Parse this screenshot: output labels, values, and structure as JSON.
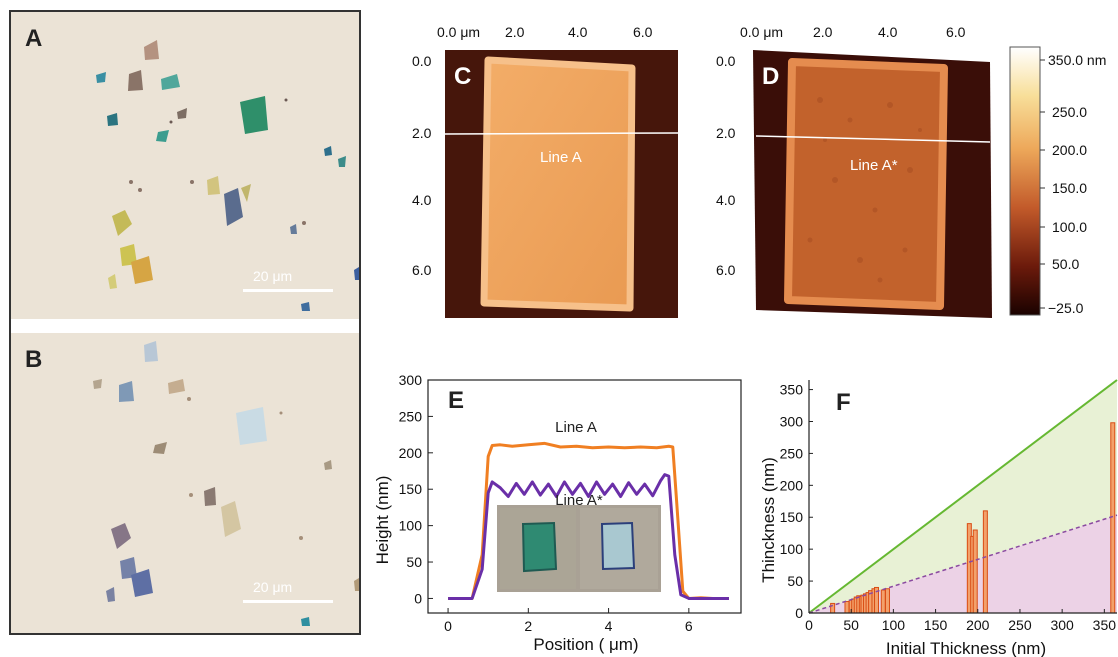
{
  "panels": {
    "a": {
      "letter": "A",
      "scalebar": "20 μm"
    },
    "b": {
      "letter": "B",
      "scalebar": "20 μm"
    },
    "c": {
      "letter": "C",
      "line_label": "Line A"
    },
    "d": {
      "letter": "D",
      "line_label": "Line A*"
    },
    "e": {
      "letter": "E"
    },
    "f": {
      "letter": "F"
    }
  },
  "afm": {
    "x_ticks": [
      "0.0 μm",
      "2.0",
      "4.0",
      "6.0"
    ],
    "y_ticks": [
      "0.0",
      "2.0",
      "4.0",
      "6.0"
    ]
  },
  "colorbar": {
    "labels": [
      "350.0 nm",
      "250.0",
      "200.0",
      "150.0",
      "100.0",
      "50.0",
      "−25.0"
    ]
  },
  "colors": {
    "orange": "#f07f22",
    "purple": "#6a2fa8",
    "green_line": "#66b832",
    "pink_line": "#8a4aa0",
    "green_fill": "#e8f1d5",
    "pink_fill": "#ecd2e6",
    "bar_fill": "#f3a16b",
    "bar_edge": "#d94d14"
  },
  "chart_data": [
    {
      "type": "line",
      "panel": "E",
      "xlabel": "Position ( μm)",
      "ylabel": "Height (nm)",
      "xlim": [
        -0.5,
        7.3
      ],
      "ylim": [
        -20,
        300
      ],
      "x_ticks": [
        "0",
        "2",
        "4",
        "6"
      ],
      "y_ticks": [
        "0",
        "50",
        "100",
        "150",
        "200",
        "250",
        "300"
      ],
      "series": [
        {
          "name": "Line A",
          "x": [
            0,
            0.6,
            0.85,
            1.0,
            1.1,
            1.3,
            1.6,
            2.0,
            2.4,
            2.8,
            3.2,
            3.6,
            4.0,
            4.4,
            4.8,
            5.2,
            5.5,
            5.6,
            5.7,
            5.85,
            6.0,
            6.3,
            6.6,
            7.0
          ],
          "y": [
            0,
            0,
            60,
            195,
            210,
            211,
            209,
            211,
            213,
            208,
            209,
            207,
            208,
            207,
            208,
            207,
            209,
            208,
            130,
            10,
            0,
            1,
            0,
            0
          ]
        },
        {
          "name": "Line A*",
          "x": [
            0,
            0.6,
            0.85,
            1.0,
            1.1,
            1.3,
            1.5,
            1.7,
            1.9,
            2.1,
            2.3,
            2.5,
            2.7,
            2.9,
            3.1,
            3.3,
            3.5,
            3.7,
            3.9,
            4.1,
            4.3,
            4.5,
            4.7,
            4.9,
            5.1,
            5.3,
            5.4,
            5.5,
            5.65,
            5.8,
            6.0,
            6.4,
            7.0
          ],
          "y": [
            0,
            0,
            40,
            145,
            160,
            152,
            140,
            158,
            143,
            160,
            142,
            157,
            140,
            160,
            143,
            158,
            140,
            160,
            143,
            157,
            140,
            159,
            143,
            157,
            141,
            162,
            170,
            168,
            60,
            5,
            0,
            0,
            0
          ]
        }
      ],
      "inset_image": true
    },
    {
      "type": "bar",
      "panel": "F",
      "xlabel": "Initial Thickness (nm)",
      "ylabel": "Thinckness (nm)",
      "xlim": [
        0,
        365
      ],
      "ylim": [
        0,
        365
      ],
      "x_ticks": [
        "0",
        "50",
        "100",
        "150",
        "200",
        "250",
        "300",
        "350"
      ],
      "y_ticks": [
        "0",
        "50",
        "100",
        "150",
        "200",
        "250",
        "300",
        "350"
      ],
      "reference_lines": [
        {
          "style": "solid",
          "slope": 1.0
        },
        {
          "style": "dashed",
          "slope": 0.42
        }
      ],
      "x": [
        28,
        45,
        50,
        53,
        56,
        59,
        62,
        64,
        67,
        70,
        73,
        77,
        80,
        88,
        93,
        190,
        194,
        197,
        209,
        360
      ],
      "values": [
        15,
        18,
        20,
        22,
        25,
        27,
        26,
        28,
        30,
        32,
        35,
        38,
        40,
        36,
        38,
        140,
        120,
        130,
        160,
        298
      ]
    }
  ]
}
